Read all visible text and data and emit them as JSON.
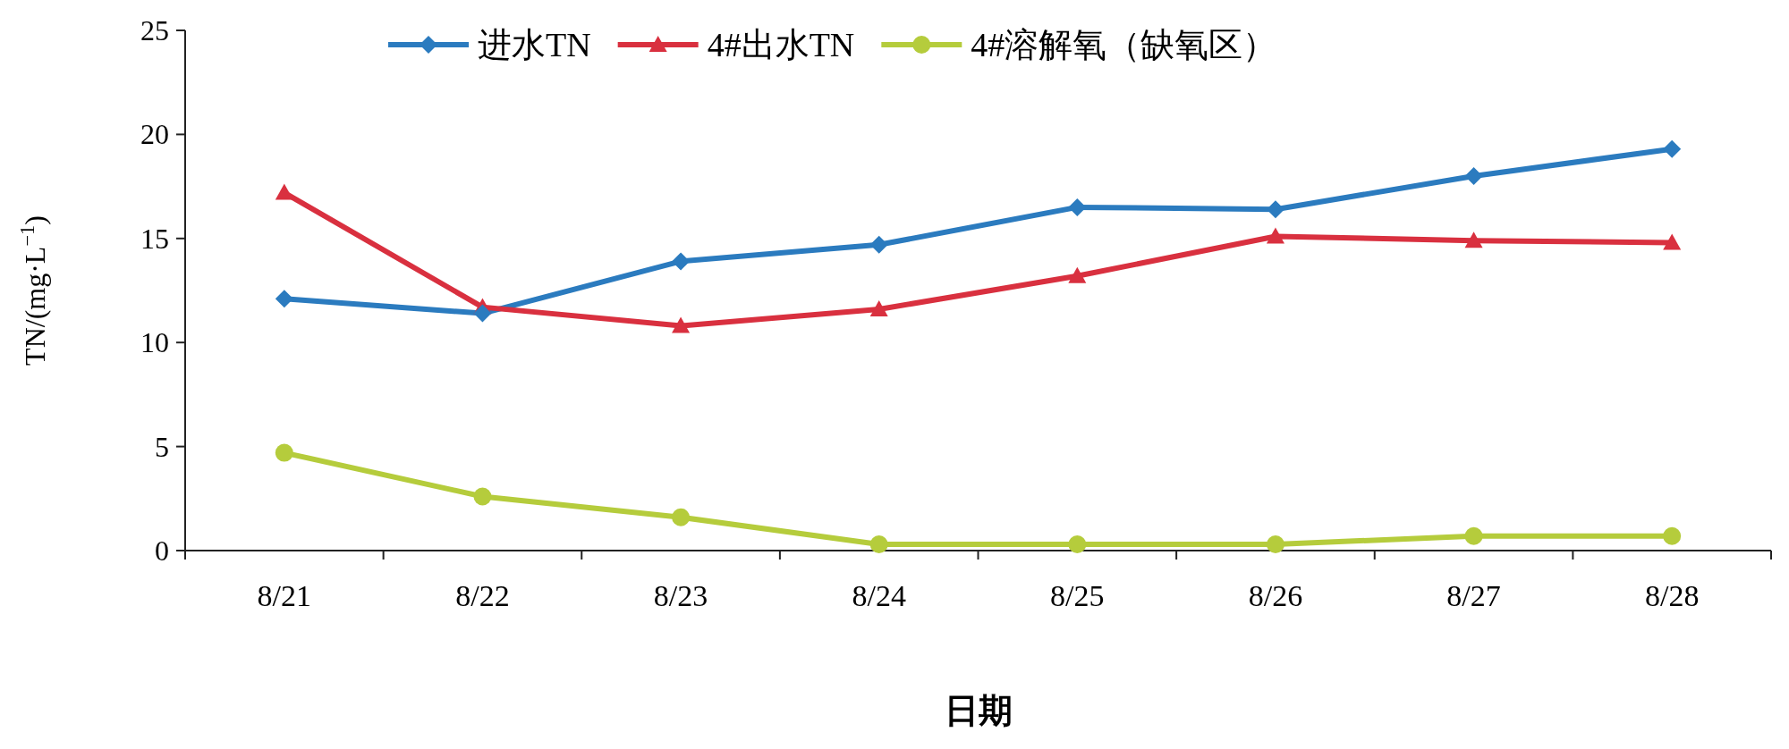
{
  "chart_data": {
    "type": "line",
    "xlabel": "日期",
    "ylabel": "TN/(mg·L$^{−1}$)",
    "categories": [
      "8/21",
      "8/22",
      "8/23",
      "8/24",
      "8/25",
      "8/26",
      "8/27",
      "8/28"
    ],
    "ylim": [
      0,
      25
    ],
    "yticks": [
      0,
      5,
      10,
      15,
      20,
      25
    ],
    "legend": "top",
    "series": [
      {
        "name": "进水TN",
        "color": "#2b7bbf",
        "marker": "diamond",
        "values": [
          12.1,
          11.4,
          13.9,
          14.7,
          16.5,
          16.4,
          18.0,
          19.3
        ]
      },
      {
        "name": "4#出水TN",
        "color": "#d9303f",
        "marker": "triangle",
        "values": [
          17.2,
          11.7,
          10.8,
          11.6,
          13.2,
          15.1,
          14.9,
          14.8
        ]
      },
      {
        "name": "4#溶解氧（缺氧区）",
        "color": "#b5cc3c",
        "marker": "circle",
        "values": [
          4.7,
          2.6,
          1.6,
          0.3,
          0.3,
          0.3,
          0.7,
          0.7
        ]
      }
    ]
  }
}
